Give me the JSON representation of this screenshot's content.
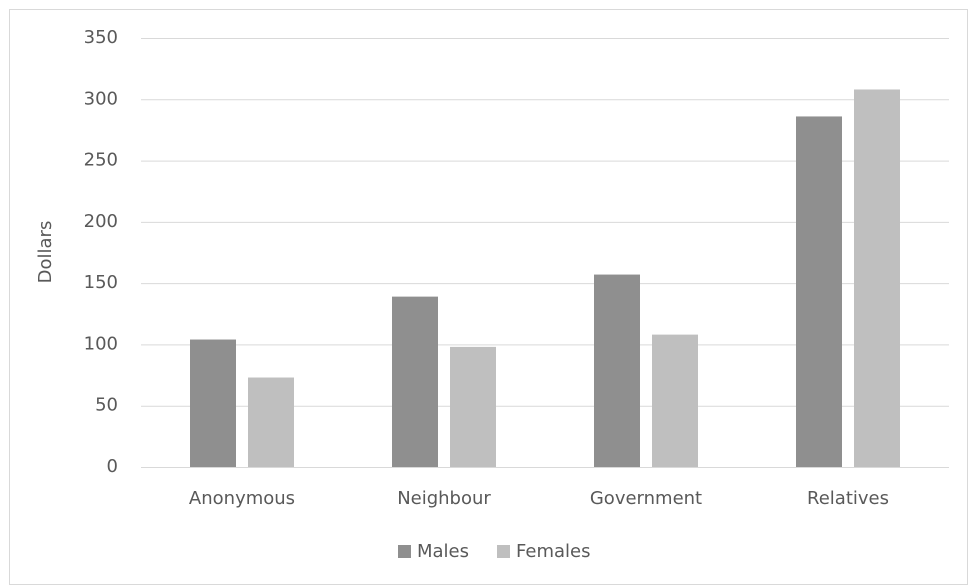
{
  "chart_data": {
    "type": "bar",
    "y_label": "Dollars",
    "categories": [
      "Anonymous",
      "Neighbour",
      "Government",
      "Relatives"
    ],
    "series": [
      {
        "name": "Males",
        "color": "#8f8f8f",
        "values": [
          104,
          139,
          157,
          286
        ]
      },
      {
        "name": "Females",
        "color": "#bfbfbf",
        "values": [
          73,
          98,
          108,
          308
        ]
      }
    ],
    "ylim": [
      0,
      350
    ],
    "yticks": [
      0,
      50,
      100,
      150,
      200,
      250,
      300,
      350
    ],
    "grid": true,
    "legend": "bottom"
  }
}
